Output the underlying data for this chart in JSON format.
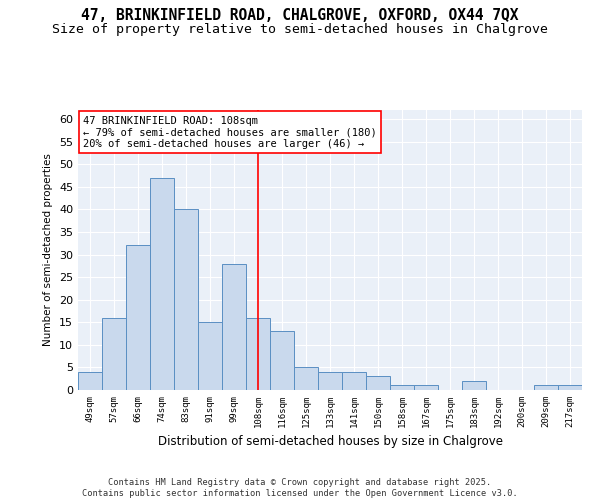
{
  "title_line1": "47, BRINKINFIELD ROAD, CHALGROVE, OXFORD, OX44 7QX",
  "title_line2": "Size of property relative to semi-detached houses in Chalgrove",
  "xlabel": "Distribution of semi-detached houses by size in Chalgrove",
  "ylabel": "Number of semi-detached properties",
  "categories": [
    "49sqm",
    "57sqm",
    "66sqm",
    "74sqm",
    "83sqm",
    "91sqm",
    "99sqm",
    "108sqm",
    "116sqm",
    "125sqm",
    "133sqm",
    "141sqm",
    "150sqm",
    "158sqm",
    "167sqm",
    "175sqm",
    "183sqm",
    "192sqm",
    "200sqm",
    "209sqm",
    "217sqm"
  ],
  "values": [
    4,
    16,
    32,
    47,
    40,
    15,
    28,
    16,
    13,
    5,
    4,
    4,
    3,
    1,
    1,
    0,
    2,
    0,
    0,
    1,
    1
  ],
  "bar_color": "#c9d9ed",
  "bar_edgecolor": "#5a8fc3",
  "vline_index": 7,
  "vline_color": "red",
  "annotation_text": "47 BRINKINFIELD ROAD: 108sqm\n← 79% of semi-detached houses are smaller (180)\n20% of semi-detached houses are larger (46) →",
  "ylim": [
    0,
    62
  ],
  "yticks": [
    0,
    5,
    10,
    15,
    20,
    25,
    30,
    35,
    40,
    45,
    50,
    55,
    60
  ],
  "background_color": "#eaf0f8",
  "footer_text": "Contains HM Land Registry data © Crown copyright and database right 2025.\nContains public sector information licensed under the Open Government Licence v3.0.",
  "title_fontsize": 10.5,
  "subtitle_fontsize": 9.5,
  "bar_width": 1.0
}
